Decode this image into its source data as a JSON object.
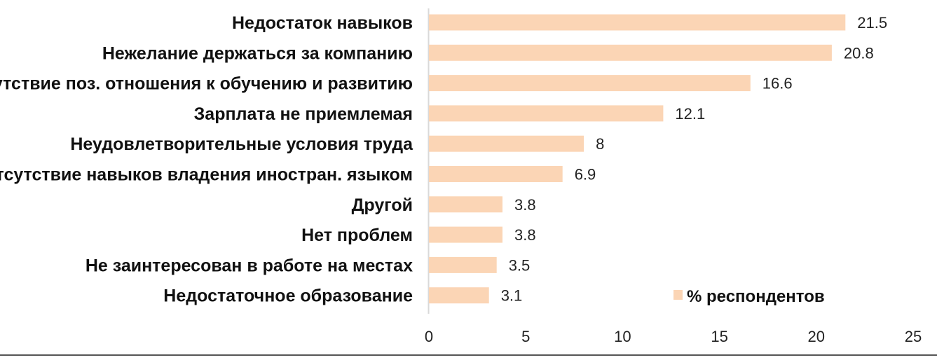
{
  "chart_data": {
    "type": "bar",
    "orientation": "horizontal",
    "categories": [
      "Недостаток навыков",
      "Нежелание держаться за компанию",
      "Отсутствие поз. отношения к обучению и развитию",
      "Зарплата не приемлемая",
      "Неудовлетворительные условия труда",
      "Отсутствие навыков владения иностран. языком",
      "Другой",
      "Нет проблем",
      "Не заинтересован в работе на местах",
      "Недостаточное образование"
    ],
    "values": [
      21.5,
      20.8,
      16.6,
      12.1,
      8,
      6.9,
      3.8,
      3.8,
      3.5,
      3.1
    ],
    "value_labels": [
      "21.5",
      "20.8",
      "16.6",
      "12.1",
      "8",
      "6.9",
      "3.8",
      "3.8",
      "3.5",
      "3.1"
    ],
    "series": [
      {
        "name": "% респондентов"
      }
    ],
    "legend": {
      "label": "% респондентов",
      "placement": "bottom-right"
    },
    "xlim": [
      0,
      25
    ],
    "x_ticks": [
      0,
      5,
      10,
      15,
      20,
      25
    ],
    "x_tick_labels": [
      "0",
      "5",
      "10",
      "15",
      "20",
      "25"
    ],
    "grid": false,
    "title": "",
    "xlabel": "",
    "ylabel": "",
    "colors": {
      "bar": "#FBD5B5",
      "axis": "#D9D9D9",
      "frame_line": "#555555"
    }
  }
}
